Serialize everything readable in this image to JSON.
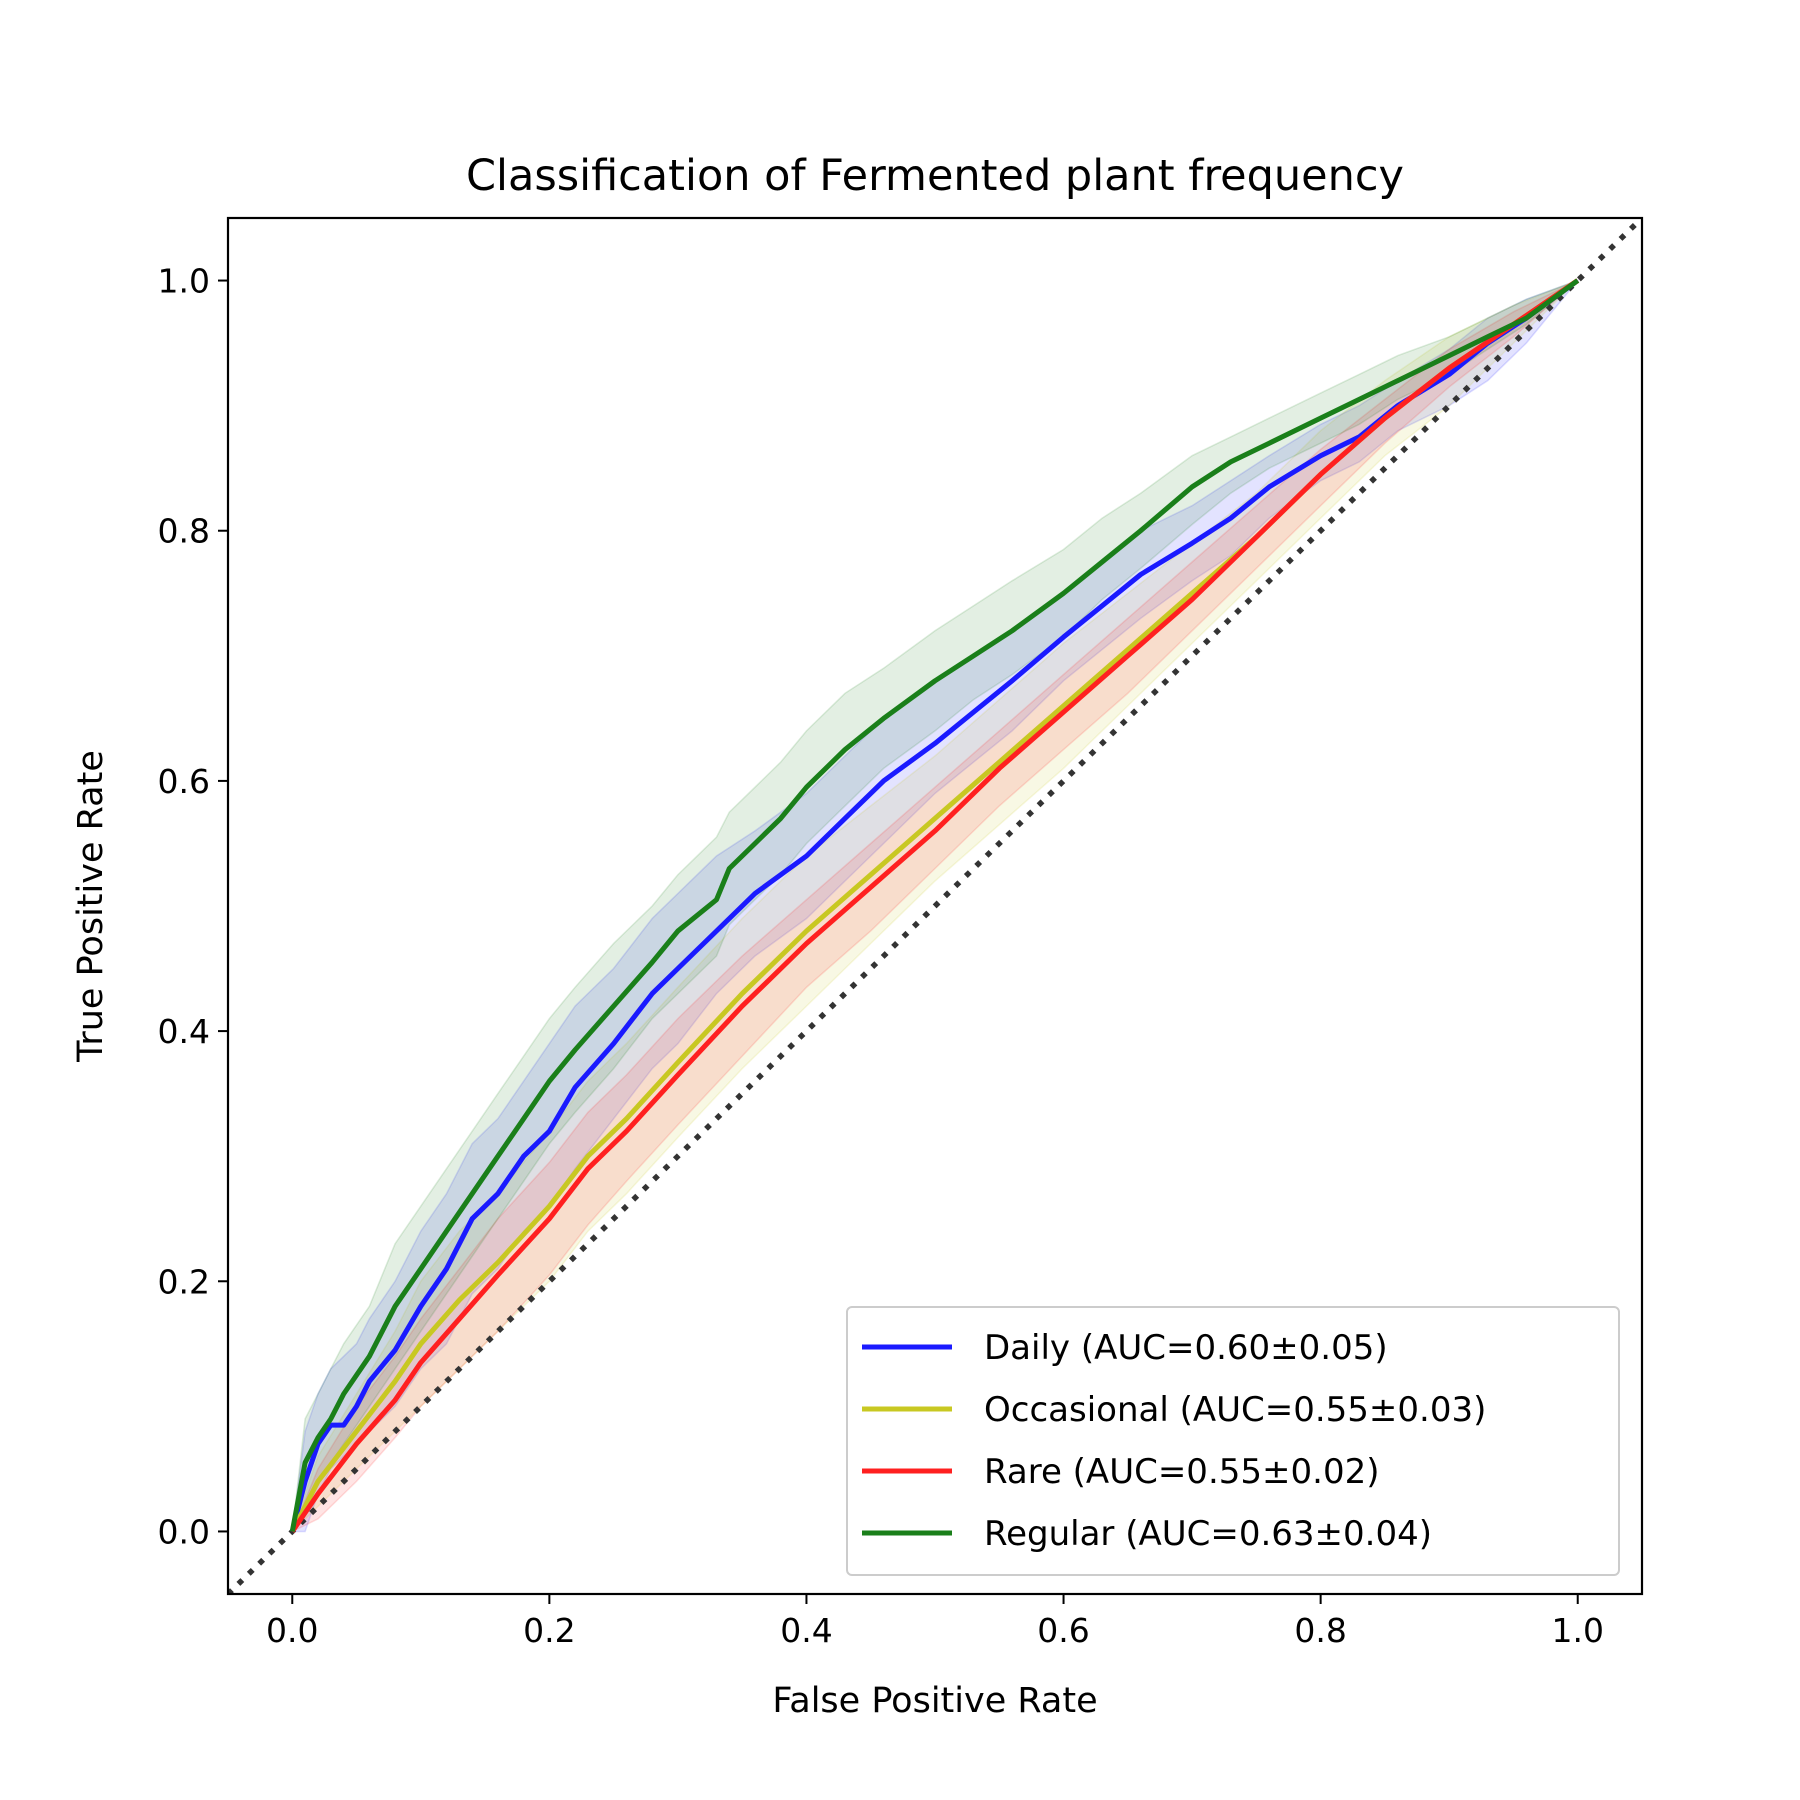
{
  "chart_data": {
    "type": "line",
    "title": "Classification of Fermented plant frequency",
    "xlabel": "False Positive Rate",
    "ylabel": "True Positive Rate",
    "xlim": [
      -0.05,
      1.05
    ],
    "ylim": [
      -0.05,
      1.05
    ],
    "xticks": [
      "0.0",
      "0.2",
      "0.4",
      "0.6",
      "0.8",
      "1.0"
    ],
    "yticks": [
      "0.0",
      "0.2",
      "0.4",
      "0.6",
      "0.8",
      "1.0"
    ],
    "grid": false,
    "legend_position": "lower-right",
    "chance_line": {
      "x": [
        -0.05,
        1.05
      ],
      "y": [
        -0.05,
        1.05
      ],
      "color": "#333333",
      "style": "dotted"
    },
    "series": [
      {
        "name": "Daily (AUC=0.60±0.05)",
        "color": "#1a1aff",
        "x": [
          0.0,
          0.01,
          0.02,
          0.03,
          0.04,
          0.05,
          0.06,
          0.08,
          0.1,
          0.12,
          0.14,
          0.16,
          0.18,
          0.2,
          0.22,
          0.25,
          0.28,
          0.3,
          0.33,
          0.36,
          0.4,
          0.43,
          0.46,
          0.5,
          0.53,
          0.56,
          0.6,
          0.63,
          0.66,
          0.7,
          0.73,
          0.76,
          0.8,
          0.83,
          0.86,
          0.9,
          0.93,
          0.96,
          1.0
        ],
        "y": [
          0.0,
          0.04,
          0.07,
          0.085,
          0.085,
          0.1,
          0.12,
          0.145,
          0.18,
          0.21,
          0.25,
          0.27,
          0.3,
          0.32,
          0.355,
          0.39,
          0.43,
          0.45,
          0.48,
          0.51,
          0.54,
          0.57,
          0.6,
          0.63,
          0.655,
          0.68,
          0.715,
          0.74,
          0.765,
          0.79,
          0.81,
          0.835,
          0.86,
          0.875,
          0.9,
          0.925,
          0.95,
          0.97,
          1.0
        ],
        "lower": [
          0.0,
          0.0,
          0.03,
          0.05,
          0.06,
          0.07,
          0.08,
          0.1,
          0.13,
          0.15,
          0.19,
          0.21,
          0.24,
          0.26,
          0.29,
          0.33,
          0.37,
          0.39,
          0.43,
          0.46,
          0.49,
          0.52,
          0.55,
          0.59,
          0.615,
          0.64,
          0.68,
          0.705,
          0.73,
          0.76,
          0.78,
          0.81,
          0.84,
          0.855,
          0.88,
          0.9,
          0.92,
          0.95,
          1.0
        ],
        "upper": [
          0.0,
          0.08,
          0.11,
          0.13,
          0.14,
          0.15,
          0.17,
          0.2,
          0.24,
          0.27,
          0.31,
          0.33,
          0.36,
          0.39,
          0.42,
          0.45,
          0.49,
          0.51,
          0.54,
          0.56,
          0.59,
          0.62,
          0.65,
          0.68,
          0.7,
          0.72,
          0.75,
          0.775,
          0.8,
          0.82,
          0.84,
          0.86,
          0.885,
          0.9,
          0.92,
          0.945,
          0.97,
          0.985,
          1.0
        ]
      },
      {
        "name": "Occasional (AUC=0.55±0.03)",
        "color": "#c8c822",
        "x": [
          0.0,
          0.02,
          0.05,
          0.08,
          0.1,
          0.13,
          0.16,
          0.2,
          0.23,
          0.26,
          0.3,
          0.35,
          0.4,
          0.45,
          0.5,
          0.55,
          0.6,
          0.65,
          0.7,
          0.75,
          0.8,
          0.85,
          0.9,
          0.95,
          1.0
        ],
        "y": [
          0.0,
          0.04,
          0.08,
          0.12,
          0.15,
          0.185,
          0.215,
          0.26,
          0.3,
          0.33,
          0.375,
          0.43,
          0.48,
          0.525,
          0.57,
          0.615,
          0.66,
          0.705,
          0.75,
          0.795,
          0.845,
          0.89,
          0.93,
          0.965,
          1.0
        ],
        "lower": [
          0.0,
          0.02,
          0.05,
          0.08,
          0.1,
          0.13,
          0.16,
          0.2,
          0.24,
          0.27,
          0.315,
          0.37,
          0.42,
          0.47,
          0.52,
          0.565,
          0.61,
          0.66,
          0.71,
          0.76,
          0.81,
          0.86,
          0.9,
          0.95,
          1.0
        ],
        "upper": [
          0.0,
          0.06,
          0.11,
          0.16,
          0.2,
          0.24,
          0.27,
          0.32,
          0.36,
          0.39,
          0.435,
          0.49,
          0.54,
          0.58,
          0.62,
          0.665,
          0.71,
          0.75,
          0.79,
          0.83,
          0.88,
          0.92,
          0.955,
          0.98,
          1.0
        ]
      },
      {
        "name": "Rare (AUC=0.55±0.02)",
        "color": "#ff2020",
        "x": [
          0.0,
          0.02,
          0.05,
          0.08,
          0.1,
          0.13,
          0.16,
          0.2,
          0.23,
          0.26,
          0.3,
          0.35,
          0.4,
          0.45,
          0.5,
          0.55,
          0.6,
          0.65,
          0.7,
          0.75,
          0.8,
          0.85,
          0.9,
          0.95,
          1.0
        ],
        "y": [
          0.0,
          0.03,
          0.07,
          0.105,
          0.135,
          0.17,
          0.205,
          0.25,
          0.29,
          0.32,
          0.365,
          0.42,
          0.47,
          0.515,
          0.56,
          0.61,
          0.655,
          0.7,
          0.745,
          0.795,
          0.845,
          0.89,
          0.93,
          0.965,
          1.0
        ],
        "lower": [
          0.0,
          0.01,
          0.04,
          0.075,
          0.1,
          0.13,
          0.16,
          0.205,
          0.245,
          0.28,
          0.325,
          0.38,
          0.435,
          0.48,
          0.53,
          0.58,
          0.625,
          0.67,
          0.72,
          0.77,
          0.82,
          0.87,
          0.915,
          0.955,
          1.0
        ],
        "upper": [
          0.0,
          0.05,
          0.1,
          0.14,
          0.17,
          0.21,
          0.25,
          0.295,
          0.335,
          0.365,
          0.41,
          0.46,
          0.505,
          0.55,
          0.595,
          0.64,
          0.685,
          0.73,
          0.775,
          0.82,
          0.865,
          0.905,
          0.945,
          0.975,
          1.0
        ]
      },
      {
        "name": "Regular (AUC=0.63±0.04)",
        "color": "#1a7f1a",
        "x": [
          0.0,
          0.01,
          0.02,
          0.03,
          0.04,
          0.06,
          0.08,
          0.1,
          0.12,
          0.14,
          0.16,
          0.18,
          0.2,
          0.22,
          0.25,
          0.28,
          0.3,
          0.33,
          0.34,
          0.36,
          0.38,
          0.4,
          0.43,
          0.46,
          0.5,
          0.53,
          0.56,
          0.6,
          0.63,
          0.66,
          0.7,
          0.73,
          0.76,
          0.8,
          0.83,
          0.86,
          0.9,
          0.93,
          0.96,
          1.0
        ],
        "y": [
          0.0,
          0.055,
          0.075,
          0.09,
          0.11,
          0.14,
          0.18,
          0.21,
          0.24,
          0.27,
          0.3,
          0.33,
          0.36,
          0.385,
          0.42,
          0.455,
          0.48,
          0.505,
          0.53,
          0.55,
          0.57,
          0.595,
          0.625,
          0.65,
          0.68,
          0.7,
          0.72,
          0.75,
          0.775,
          0.8,
          0.835,
          0.855,
          0.87,
          0.89,
          0.905,
          0.92,
          0.94,
          0.955,
          0.97,
          1.0
        ],
        "lower": [
          0.0,
          0.02,
          0.04,
          0.055,
          0.07,
          0.1,
          0.13,
          0.16,
          0.19,
          0.22,
          0.25,
          0.28,
          0.31,
          0.335,
          0.37,
          0.41,
          0.43,
          0.46,
          0.485,
          0.505,
          0.525,
          0.55,
          0.58,
          0.61,
          0.64,
          0.665,
          0.685,
          0.715,
          0.745,
          0.77,
          0.805,
          0.83,
          0.85,
          0.87,
          0.885,
          0.905,
          0.925,
          0.945,
          0.965,
          1.0
        ],
        "upper": [
          0.0,
          0.09,
          0.11,
          0.13,
          0.15,
          0.18,
          0.23,
          0.26,
          0.29,
          0.32,
          0.35,
          0.38,
          0.41,
          0.435,
          0.47,
          0.5,
          0.525,
          0.555,
          0.575,
          0.595,
          0.615,
          0.64,
          0.67,
          0.69,
          0.72,
          0.74,
          0.76,
          0.785,
          0.81,
          0.83,
          0.86,
          0.875,
          0.89,
          0.91,
          0.925,
          0.94,
          0.955,
          0.97,
          0.985,
          1.0
        ]
      }
    ]
  }
}
